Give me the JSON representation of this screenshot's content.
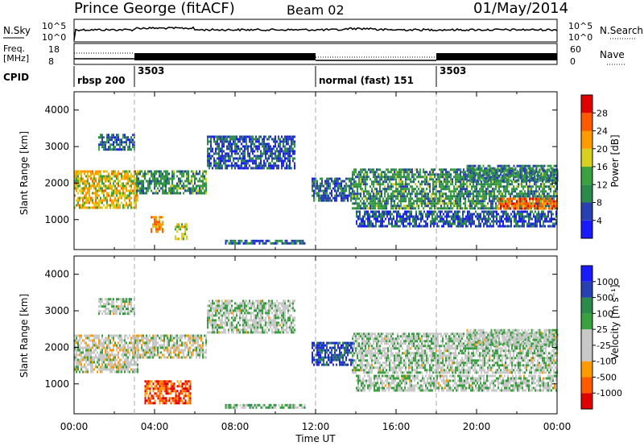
{
  "header": {
    "station": "Prince George (fitACF)",
    "beam": "Beam 02",
    "date": "01/May/2014"
  },
  "top_panel": {
    "nsky_label": "N.Sky",
    "nsearch_label": "N.Search",
    "noise_ticks": [
      "10^5",
      "10^0"
    ],
    "freq_label": "Freq.",
    "freq_unit": "[MHz]",
    "freq_ticks": [
      "18",
      "8"
    ],
    "nave_label": "Nave",
    "nave_ticks": [
      "60",
      "0"
    ],
    "cpid_label": "CPID",
    "cpid_entries": [
      {
        "label": "rbsp 200",
        "start_hour": 0
      },
      {
        "label": "3503",
        "start_hour": 3
      },
      {
        "label": "normal (fast) 151",
        "start_hour": 12
      },
      {
        "label": "3503",
        "start_hour": 18
      }
    ]
  },
  "colors": {
    "power": [
      "#1a1aff",
      "#2a3fb0",
      "#2c8a4a",
      "#3aa040",
      "#d8d020",
      "#ff9a00",
      "#ff5a00",
      "#e00000"
    ],
    "velocity": [
      "#e00000",
      "#ff5a00",
      "#ff9a00",
      "#c8c8c8",
      "#c8c8c8",
      "#3aa040",
      "#2c8a4a",
      "#2a3fb0",
      "#1a1aff"
    ]
  },
  "chart_data": [
    {
      "type": "heatmap",
      "title": "",
      "ylabel": "Slant Range [km]",
      "xlabel": "",
      "xlim_hours": [
        0,
        24
      ],
      "ylim_km": [
        180,
        4500
      ],
      "yticks": [
        1000,
        2000,
        3000,
        4000
      ],
      "colorbar": {
        "label": "Power [dB]",
        "ticks": [
          "28",
          "24",
          "20",
          "16",
          "12",
          "8",
          "4"
        ]
      },
      "echo_regions": [
        {
          "t0": 0.0,
          "t1": 3.2,
          "r0": 1350,
          "r1": 2350,
          "level": 0.6
        },
        {
          "t0": 1.2,
          "t1": 3.0,
          "r0": 2950,
          "r1": 3350,
          "level": 0.25
        },
        {
          "t0": 3.0,
          "t1": 6.6,
          "r0": 1700,
          "r1": 2350,
          "level": 0.35
        },
        {
          "t0": 3.8,
          "t1": 4.4,
          "r0": 700,
          "r1": 1100,
          "level": 0.7
        },
        {
          "t0": 5.0,
          "t1": 5.6,
          "r0": 450,
          "r1": 900,
          "level": 0.55
        },
        {
          "t0": 6.6,
          "t1": 11.0,
          "r0": 2400,
          "r1": 3300,
          "level": 0.2
        },
        {
          "t0": 7.5,
          "t1": 11.5,
          "r0": 320,
          "r1": 450,
          "level": 0.25
        },
        {
          "t0": 11.8,
          "t1": 13.8,
          "r0": 1500,
          "r1": 2150,
          "level": 0.25
        },
        {
          "t0": 13.8,
          "t1": 24.0,
          "r0": 1300,
          "r1": 2400,
          "level": 0.35
        },
        {
          "t0": 14.0,
          "t1": 24.0,
          "r0": 850,
          "r1": 1250,
          "level": 0.2
        },
        {
          "t0": 21.0,
          "t1": 24.0,
          "r0": 1300,
          "r1": 1600,
          "level": 0.8
        },
        {
          "t0": 19.5,
          "t1": 24.0,
          "r0": 2100,
          "r1": 2500,
          "level": 0.3
        }
      ]
    },
    {
      "type": "heatmap",
      "title": "",
      "ylabel": "Slant Range [km]",
      "xlabel": "Time UT",
      "xlim_hours": [
        0,
        24
      ],
      "ylim_km": [
        180,
        4500
      ],
      "yticks": [
        1000,
        2000,
        3000,
        4000
      ],
      "xticks": [
        "00:00",
        "04:00",
        "08:00",
        "12:00",
        "16:00",
        "20:00",
        "00:00"
      ],
      "colorbar": {
        "label": "Velocity [m s⁻¹]",
        "ticks": [
          "1000",
          "500",
          "100",
          "25",
          "-25",
          "-100",
          "-500",
          "-1000"
        ]
      },
      "echo_regions": [
        {
          "t0": 0.0,
          "t1": 3.2,
          "r0": 1350,
          "r1": 2350,
          "level": 0.45
        },
        {
          "t0": 1.2,
          "t1": 3.0,
          "r0": 2950,
          "r1": 3350,
          "level": 0.5
        },
        {
          "t0": 3.0,
          "t1": 6.6,
          "r0": 1700,
          "r1": 2350,
          "level": 0.45
        },
        {
          "t0": 3.5,
          "t1": 5.8,
          "r0": 500,
          "r1": 1100,
          "level": 0.15
        },
        {
          "t0": 6.6,
          "t1": 11.0,
          "r0": 2400,
          "r1": 3300,
          "level": 0.5
        },
        {
          "t0": 7.5,
          "t1": 11.5,
          "r0": 320,
          "r1": 450,
          "level": 0.6
        },
        {
          "t0": 11.8,
          "t1": 13.8,
          "r0": 1500,
          "r1": 2150,
          "level": 0.85
        },
        {
          "t0": 13.8,
          "t1": 24.0,
          "r0": 1300,
          "r1": 2400,
          "level": 0.5
        },
        {
          "t0": 14.0,
          "t1": 24.0,
          "r0": 850,
          "r1": 1250,
          "level": 0.5
        },
        {
          "t0": 19.5,
          "t1": 24.0,
          "r0": 2100,
          "r1": 2500,
          "level": 0.5
        }
      ]
    }
  ]
}
